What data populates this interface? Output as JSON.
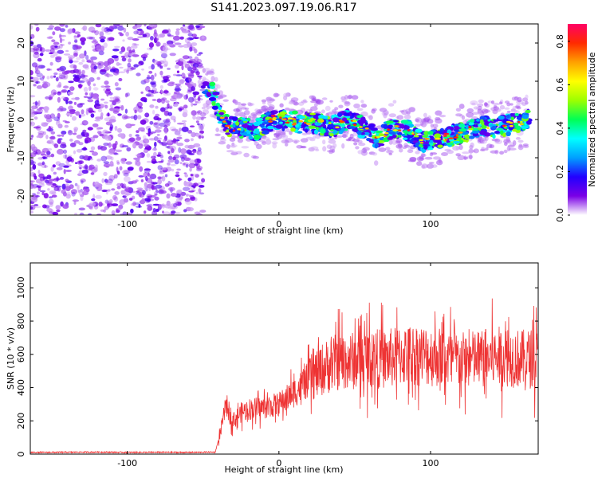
{
  "title": "S141.2023.097.19.06.R17",
  "chart_data": [
    {
      "type": "heatmap",
      "xlabel": "Height of straight line (km)",
      "ylabel": "Frequency (Hz)",
      "xlim": [
        -164,
        171
      ],
      "ylim": [
        -25,
        25
      ],
      "xticks": [
        -100,
        0,
        100
      ],
      "yticks": [
        -20,
        -10,
        0,
        10,
        20
      ],
      "grid": false,
      "noise_region": {
        "x": [
          -164,
          -50
        ],
        "y": [
          -25,
          25
        ]
      },
      "ridge": [
        {
          "x": -50,
          "y": 8
        },
        {
          "x": -46,
          "y": 9
        },
        {
          "x": -42,
          "y": 5
        },
        {
          "x": -38,
          "y": 0
        },
        {
          "x": -33,
          "y": -2
        },
        {
          "x": -25,
          "y": -2
        },
        {
          "x": -15,
          "y": -3
        },
        {
          "x": -5,
          "y": 0
        },
        {
          "x": 5,
          "y": 0
        },
        {
          "x": 15,
          "y": -1
        },
        {
          "x": 25,
          "y": -1
        },
        {
          "x": 35,
          "y": -2
        },
        {
          "x": 45,
          "y": 0
        },
        {
          "x": 55,
          "y": -2
        },
        {
          "x": 65,
          "y": -5
        },
        {
          "x": 75,
          "y": -2
        },
        {
          "x": 85,
          "y": -3
        },
        {
          "x": 95,
          "y": -6
        },
        {
          "x": 105,
          "y": -5
        },
        {
          "x": 115,
          "y": -4
        },
        {
          "x": 125,
          "y": -3
        },
        {
          "x": 135,
          "y": -2
        },
        {
          "x": 145,
          "y": -2
        },
        {
          "x": 155,
          "y": -1
        },
        {
          "x": 165,
          "y": 0
        }
      ],
      "colorbar": {
        "label": "Normalized spectral amplitude",
        "range": [
          0,
          0.88
        ],
        "ticks": [
          0,
          0.2,
          0.4,
          0.6,
          0.8
        ],
        "tick_labels": [
          "0.0",
          "0.2",
          "0.4",
          "0.6",
          "0.8"
        ],
        "colors": [
          "#ffffff",
          "#7a00e6",
          "#2200ff",
          "#00a0ff",
          "#00ffff",
          "#00ff55",
          "#9dff00",
          "#ffff00",
          "#ffa000",
          "#ff2a00",
          "#ff0066"
        ]
      }
    },
    {
      "type": "line",
      "xlabel": "Height of straight line (km)",
      "ylabel": "SNR (10 * v/v)",
      "xlim": [
        -164,
        171
      ],
      "ylim": [
        0,
        1150
      ],
      "xticks": [
        -100,
        0,
        100
      ],
      "yticks": [
        0,
        200,
        400,
        600,
        800,
        1000
      ],
      "grid": false,
      "series": [
        {
          "color": "#ee3333",
          "x": [
            -164,
            -140,
            -120,
            -100,
            -80,
            -60,
            -42,
            -38,
            -35,
            -30,
            -25,
            -20,
            -10,
            0,
            10,
            20,
            30,
            40,
            50,
            60,
            70,
            80,
            90,
            100,
            110,
            120,
            130,
            140,
            150,
            160,
            171
          ],
          "y": [
            10,
            11,
            12,
            10,
            11,
            10,
            12,
            150,
            300,
            200,
            250,
            270,
            280,
            300,
            370,
            450,
            520,
            560,
            560,
            580,
            570,
            590,
            600,
            590,
            580,
            560,
            570,
            580,
            590,
            570,
            580
          ]
        }
      ]
    }
  ]
}
